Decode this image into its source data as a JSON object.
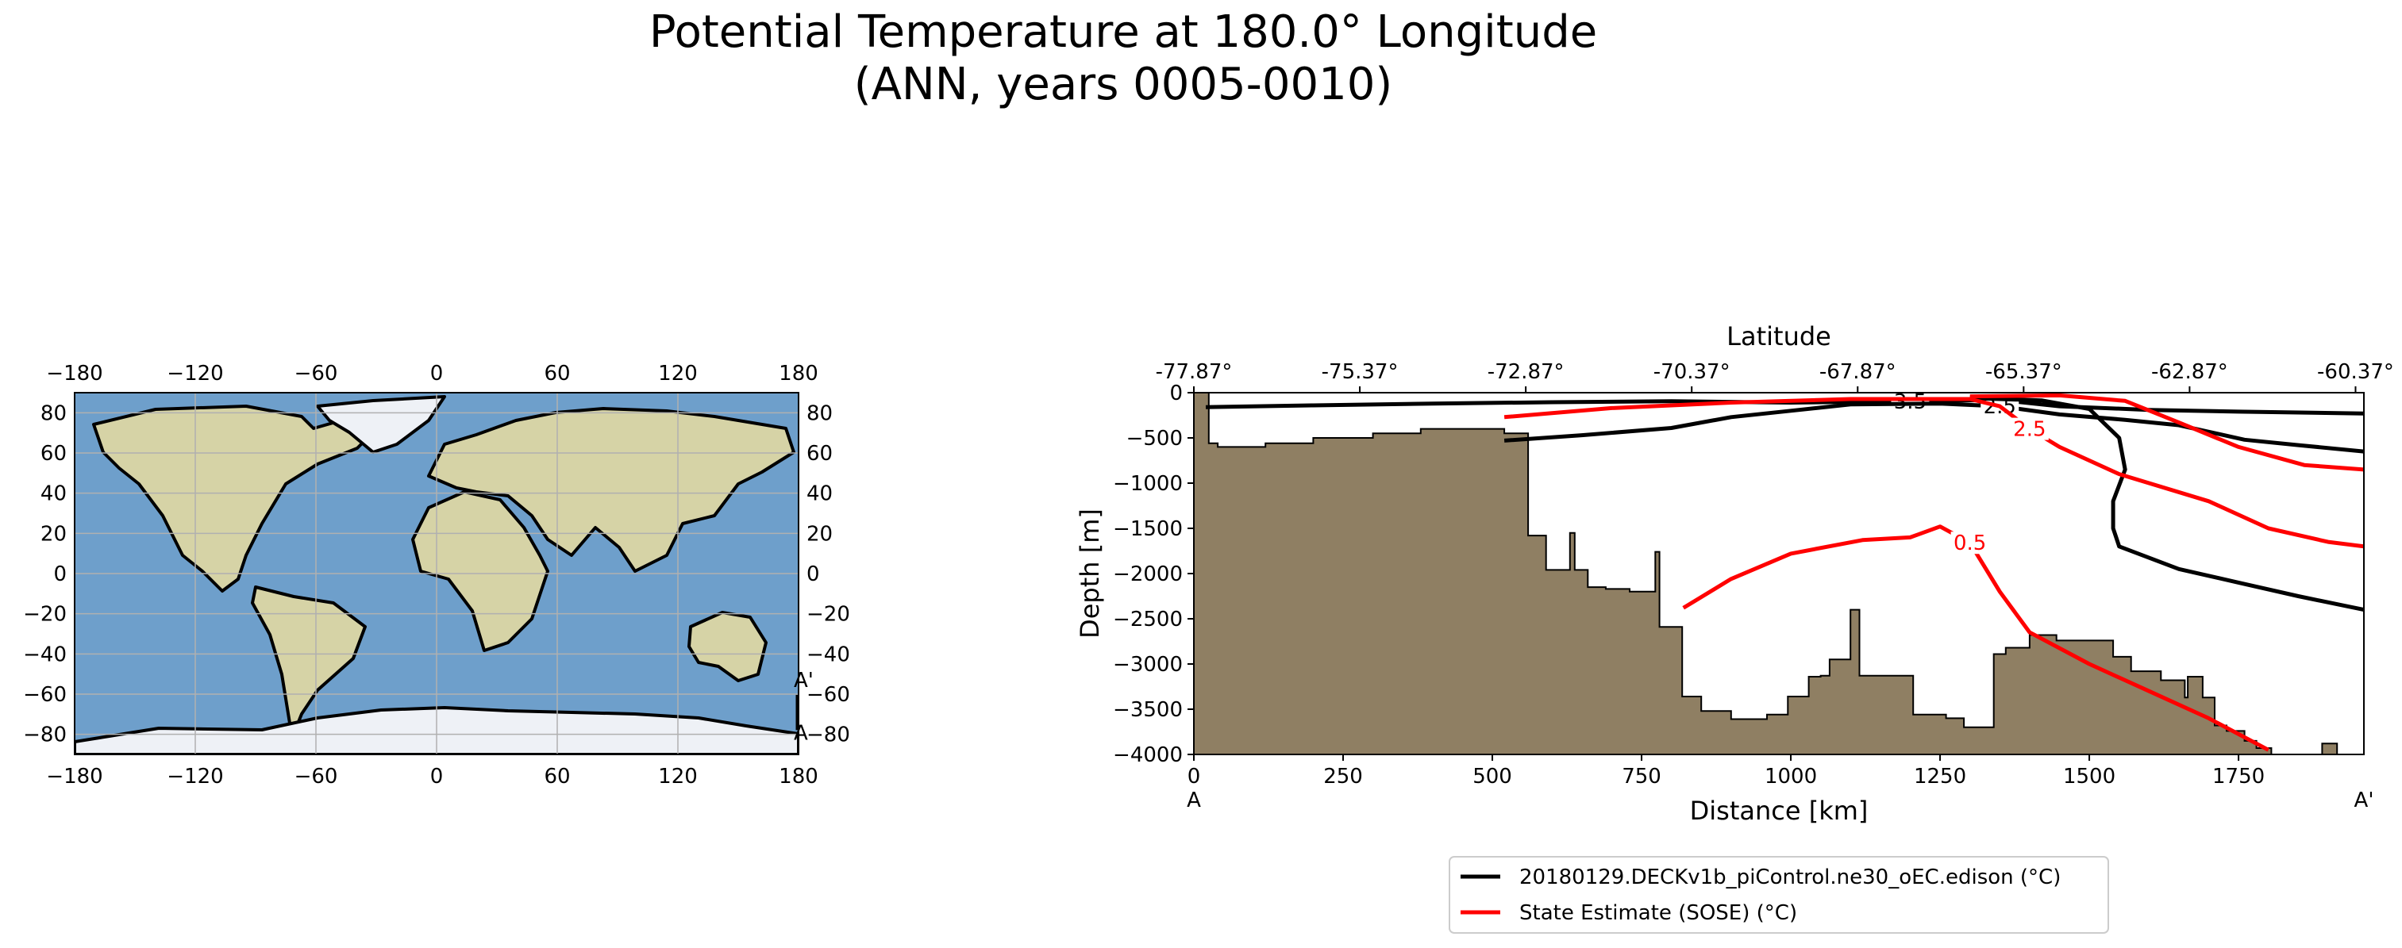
{
  "figure": {
    "title_line1": "Potential Temperature at 180.0° Longitude",
    "title_line2": "(ANN, years 0005-0010)"
  },
  "colors": {
    "model": "#000000",
    "observations": "#ff0000",
    "bathymetry": "#8f7f63",
    "ocean": "#6e9fcb",
    "land": "#d6d3a6",
    "ice": "#eef1f6",
    "grid": "#b0b0b0"
  },
  "chart_data": [
    {
      "type": "map",
      "projection": "plate_carree",
      "xticks": [
        "−180",
        "−120",
        "−60",
        "0",
        "60",
        "120",
        "180"
      ],
      "yticks": [
        "80",
        "60",
        "40",
        "20",
        "0",
        "−20",
        "−40",
        "−60",
        "−80"
      ],
      "xtick_values": [
        -180,
        -120,
        -60,
        0,
        60,
        120,
        180
      ],
      "ytick_values": [
        80,
        60,
        40,
        20,
        0,
        -20,
        -40,
        -60,
        -80
      ],
      "xlim": [
        -180,
        180
      ],
      "ylim": [
        -90,
        90
      ],
      "grid": true,
      "transect": {
        "lon": 180,
        "lat_start": -77.87,
        "lat_end": -60.37,
        "start_label": "A",
        "end_label": "A'"
      }
    },
    {
      "type": "line",
      "subtype": "contour_transect",
      "xlabel": "Distance [km]",
      "ylabel": "Depth [m]",
      "top_xlabel": "Latitude",
      "xlim": [
        0,
        1960
      ],
      "ylim": [
        -4000,
        0
      ],
      "xticks": [
        0,
        250,
        500,
        750,
        1000,
        1250,
        1500,
        1750
      ],
      "yticks": [
        0,
        -500,
        -1000,
        -1500,
        -2000,
        -2500,
        -3000,
        -3500,
        -4000
      ],
      "ytick_labels": [
        "0",
        "−500",
        "−1000",
        "−1500",
        "−2000",
        "−2500",
        "−3000",
        "−3500",
        "−4000"
      ],
      "top_ticks_km": [
        0,
        278,
        556,
        834,
        1112,
        1390,
        1668,
        1946
      ],
      "top_tick_labels": [
        "-77.87°",
        "-75.37°",
        "-72.87°",
        "-70.37°",
        "-67.87°",
        "-65.37°",
        "-62.87°",
        "-60.37°"
      ],
      "start_label": "A",
      "end_label": "A'",
      "legend_position": "below",
      "legend": [
        {
          "label": "20180129.DECKv1b_piControl.ne30_oEC.edison (°C)",
          "color": "#000000"
        },
        {
          "label": "State Estimate (SOSE) (°C)",
          "color": "#ff0000"
        }
      ],
      "bathymetry": [
        [
          0,
          0
        ],
        [
          25,
          0
        ],
        [
          25,
          -560
        ],
        [
          40,
          -560
        ],
        [
          40,
          -600
        ],
        [
          120,
          -600
        ],
        [
          120,
          -560
        ],
        [
          200,
          -560
        ],
        [
          200,
          -500
        ],
        [
          300,
          -500
        ],
        [
          300,
          -450
        ],
        [
          380,
          -450
        ],
        [
          380,
          -400
        ],
        [
          520,
          -400
        ],
        [
          520,
          -450
        ],
        [
          560,
          -450
        ],
        [
          560,
          -1580
        ],
        [
          590,
          -1580
        ],
        [
          590,
          -1960
        ],
        [
          630,
          -1960
        ],
        [
          630,
          -1550
        ],
        [
          638,
          -1550
        ],
        [
          638,
          -1960
        ],
        [
          660,
          -1960
        ],
        [
          660,
          -2150
        ],
        [
          690,
          -2150
        ],
        [
          690,
          -2170
        ],
        [
          730,
          -2170
        ],
        [
          730,
          -2200
        ],
        [
          773,
          -2200
        ],
        [
          773,
          -1760
        ],
        [
          780,
          -1760
        ],
        [
          780,
          -2590
        ],
        [
          818,
          -2590
        ],
        [
          818,
          -3360
        ],
        [
          850,
          -3360
        ],
        [
          850,
          -3520
        ],
        [
          900,
          -3520
        ],
        [
          900,
          -3610
        ],
        [
          960,
          -3610
        ],
        [
          960,
          -3560
        ],
        [
          995,
          -3560
        ],
        [
          995,
          -3360
        ],
        [
          1030,
          -3360
        ],
        [
          1030,
          -3140
        ],
        [
          1050,
          -3140
        ],
        [
          1050,
          -3130
        ],
        [
          1065,
          -3130
        ],
        [
          1065,
          -2950
        ],
        [
          1100,
          -2950
        ],
        [
          1100,
          -2400
        ],
        [
          1115,
          -2400
        ],
        [
          1115,
          -3130
        ],
        [
          1205,
          -3130
        ],
        [
          1205,
          -3560
        ],
        [
          1260,
          -3560
        ],
        [
          1260,
          -3600
        ],
        [
          1290,
          -3600
        ],
        [
          1290,
          -3700
        ],
        [
          1340,
          -3700
        ],
        [
          1340,
          -2890
        ],
        [
          1360,
          -2890
        ],
        [
          1360,
          -2820
        ],
        [
          1400,
          -2820
        ],
        [
          1400,
          -2680
        ],
        [
          1445,
          -2680
        ],
        [
          1445,
          -2740
        ],
        [
          1540,
          -2740
        ],
        [
          1540,
          -2920
        ],
        [
          1570,
          -2920
        ],
        [
          1570,
          -3080
        ],
        [
          1620,
          -3080
        ],
        [
          1620,
          -3180
        ],
        [
          1660,
          -3180
        ],
        [
          1660,
          -3370
        ],
        [
          1665,
          -3370
        ],
        [
          1665,
          -3140
        ],
        [
          1690,
          -3140
        ],
        [
          1690,
          -3370
        ],
        [
          1710,
          -3370
        ],
        [
          1710,
          -3680
        ],
        [
          1730,
          -3680
        ],
        [
          1730,
          -3740
        ],
        [
          1760,
          -3740
        ],
        [
          1760,
          -3850
        ],
        [
          1780,
          -3850
        ],
        [
          1780,
          -3930
        ],
        [
          1805,
          -3930
        ],
        [
          1805,
          -4000
        ],
        [
          1890,
          -4000
        ],
        [
          1890,
          -3880
        ],
        [
          1915,
          -3880
        ],
        [
          1915,
          -4000
        ],
        [
          0,
          -4000
        ]
      ],
      "series": [
        {
          "name": "20180129.DECKv1b_piControl.ne30_oEC.edison (°C)",
          "contours": [
            {
              "level": "3.5",
              "points": [
                [
                  20,
                  -160
                ],
                [
                  200,
                  -140
                ],
                [
                  400,
                  -120
                ],
                [
                  600,
                  -105
                ],
                [
                  800,
                  -95
                ],
                [
                  1000,
                  -110
                ],
                [
                  1200,
                  -95
                ],
                [
                  1350,
                  -80
                ],
                [
                  1450,
                  -150
                ],
                [
                  1600,
                  -190
                ],
                [
                  1750,
                  -210
                ],
                [
                  1960,
                  -230
                ]
              ]
            },
            {
              "level": "2.5",
              "points": [
                [
                  520,
                  -530
                ],
                [
                  650,
                  -470
                ],
                [
                  800,
                  -390
                ],
                [
                  900,
                  -270
                ],
                [
                  1000,
                  -200
                ],
                [
                  1100,
                  -130
                ],
                [
                  1250,
                  -120
                ],
                [
                  1350,
                  -150
                ],
                [
                  1450,
                  -240
                ],
                [
                  1560,
                  -300
                ],
                [
                  1650,
                  -360
                ],
                [
                  1760,
                  -520
                ],
                [
                  1850,
                  -580
                ],
                [
                  1960,
                  -650
                ]
              ]
            },
            {
              "level": "",
              "points": [
                [
                  1300,
                  -60
                ],
                [
                  1420,
                  -85
                ],
                [
                  1500,
                  -180
                ],
                [
                  1550,
                  -500
                ],
                [
                  1560,
                  -850
                ],
                [
                  1540,
                  -1200
                ],
                [
                  1540,
                  -1500
                ],
                [
                  1550,
                  -1700
                ],
                [
                  1650,
                  -1950
                ],
                [
                  1750,
                  -2100
                ],
                [
                  1850,
                  -2250
                ],
                [
                  1960,
                  -2400
                ]
              ]
            }
          ]
        },
        {
          "name": "State Estimate (SOSE) (°C)",
          "contours": [
            {
              "level": "0.5",
              "points": [
                [
                  820,
                  -2380
                ],
                [
                  900,
                  -2060
                ],
                [
                  1000,
                  -1780
                ],
                [
                  1120,
                  -1630
                ],
                [
                  1200,
                  -1600
                ],
                [
                  1250,
                  -1480
                ],
                [
                  1300,
                  -1660
                ],
                [
                  1350,
                  -2200
                ],
                [
                  1400,
                  -2650
                ],
                [
                  1500,
                  -3000
                ],
                [
                  1600,
                  -3300
                ],
                [
                  1700,
                  -3600
                ],
                [
                  1800,
                  -3950
                ]
              ]
            },
            {
              "level": "2.5",
              "points": [
                [
                  520,
                  -270
                ],
                [
                  700,
                  -170
                ],
                [
                  900,
                  -110
                ],
                [
                  1100,
                  -70
                ],
                [
                  1300,
                  -70
                ],
                [
                  1350,
                  -150
                ],
                [
                  1400,
                  -400
                ],
                [
                  1450,
                  -600
                ],
                [
                  1550,
                  -900
                ],
                [
                  1700,
                  -1200
                ],
                [
                  1800,
                  -1500
                ],
                [
                  1900,
                  -1650
                ],
                [
                  1960,
                  -1700
                ]
              ]
            },
            {
              "level": "",
              "points": [
                [
                  1300,
                  -40
                ],
                [
                  1450,
                  -30
                ],
                [
                  1560,
                  -90
                ],
                [
                  1650,
                  -330
                ],
                [
                  1750,
                  -600
                ],
                [
                  1860,
                  -800
                ],
                [
                  1960,
                  -850
                ]
              ]
            }
          ]
        }
      ]
    }
  ]
}
